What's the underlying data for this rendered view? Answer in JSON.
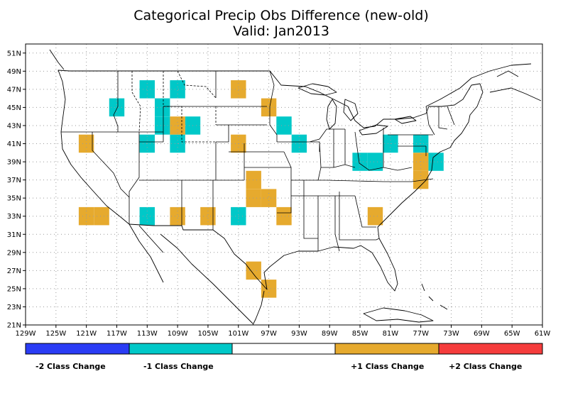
{
  "title": {
    "line1": "Categorical Precip Obs Difference (new-old)",
    "line2": "Valid: Jan2013"
  },
  "map": {
    "lon_range": [
      -129,
      -61
    ],
    "lat_range": [
      21,
      52
    ],
    "x_ticks": [
      {
        "lon": -129,
        "label": "129W"
      },
      {
        "lon": -125,
        "label": "125W"
      },
      {
        "lon": -121,
        "label": "121W"
      },
      {
        "lon": -117,
        "label": "117W"
      },
      {
        "lon": -113,
        "label": "113W"
      },
      {
        "lon": -109,
        "label": "109W"
      },
      {
        "lon": -105,
        "label": "105W"
      },
      {
        "lon": -101,
        "label": "101W"
      },
      {
        "lon": -97,
        "label": "97W"
      },
      {
        "lon": -93,
        "label": "93W"
      },
      {
        "lon": -89,
        "label": "89W"
      },
      {
        "lon": -85,
        "label": "85W"
      },
      {
        "lon": -81,
        "label": "81W"
      },
      {
        "lon": -77,
        "label": "77W"
      },
      {
        "lon": -73,
        "label": "73W"
      },
      {
        "lon": -69,
        "label": "69W"
      },
      {
        "lon": -65,
        "label": "65W"
      },
      {
        "lon": -61,
        "label": "61W"
      }
    ],
    "y_ticks": [
      {
        "lat": 21,
        "label": "21N"
      },
      {
        "lat": 23,
        "label": "23N"
      },
      {
        "lat": 25,
        "label": "25N"
      },
      {
        "lat": 27,
        "label": "27N"
      },
      {
        "lat": 29,
        "label": "29N"
      },
      {
        "lat": 31,
        "label": "31N"
      },
      {
        "lat": 33,
        "label": "33N"
      },
      {
        "lat": 35,
        "label": "35N"
      },
      {
        "lat": 37,
        "label": "37N"
      },
      {
        "lat": 39,
        "label": "39N"
      },
      {
        "lat": 41,
        "label": "41N"
      },
      {
        "lat": 43,
        "label": "43N"
      },
      {
        "lat": 45,
        "label": "45N"
      },
      {
        "lat": 47,
        "label": "47N"
      },
      {
        "lat": 49,
        "label": "49N"
      },
      {
        "lat": 51,
        "label": "51N"
      }
    ],
    "grid": true,
    "colors": {
      "minus2": "#2a3cf5",
      "minus1": "#00c8c8",
      "zero": "#ffffff",
      "plus1": "#e6aa2e",
      "plus2": "#f53c3c"
    },
    "cells": [
      {
        "lon": -113,
        "lat": 47,
        "cls": -1
      },
      {
        "lon": -111,
        "lat": 45,
        "cls": -1
      },
      {
        "lon": -109,
        "lat": 47,
        "cls": -1
      },
      {
        "lon": -117,
        "lat": 45,
        "cls": -1
      },
      {
        "lon": -111,
        "lat": 43,
        "cls": -1
      },
      {
        "lon": -107,
        "lat": 43,
        "cls": -1
      },
      {
        "lon": -113,
        "lat": 41,
        "cls": -1
      },
      {
        "lon": -109,
        "lat": 41,
        "cls": -1
      },
      {
        "lon": -95,
        "lat": 43,
        "cls": -1
      },
      {
        "lon": -93,
        "lat": 41,
        "cls": -1
      },
      {
        "lon": -85,
        "lat": 39,
        "cls": -1
      },
      {
        "lon": -83,
        "lat": 39,
        "cls": -1
      },
      {
        "lon": -81,
        "lat": 41,
        "cls": -1
      },
      {
        "lon": -77,
        "lat": 41,
        "cls": -1
      },
      {
        "lon": -75,
        "lat": 39,
        "cls": -1
      },
      {
        "lon": -113,
        "lat": 33,
        "cls": -1
      },
      {
        "lon": -101,
        "lat": 33,
        "cls": -1
      },
      {
        "lon": -101,
        "lat": 47,
        "cls": 1
      },
      {
        "lon": -97,
        "lat": 45,
        "cls": 1
      },
      {
        "lon": -109,
        "lat": 43,
        "cls": 1
      },
      {
        "lon": -121,
        "lat": 41,
        "cls": 1
      },
      {
        "lon": -101,
        "lat": 41,
        "cls": 1
      },
      {
        "lon": -99,
        "lat": 37,
        "cls": 1
      },
      {
        "lon": -99,
        "lat": 35,
        "cls": 1
      },
      {
        "lon": -97,
        "lat": 35,
        "cls": 1
      },
      {
        "lon": -121,
        "lat": 33,
        "cls": 1
      },
      {
        "lon": -119,
        "lat": 33,
        "cls": 1
      },
      {
        "lon": -109,
        "lat": 33,
        "cls": 1
      },
      {
        "lon": -105,
        "lat": 33,
        "cls": 1
      },
      {
        "lon": -95,
        "lat": 33,
        "cls": 1
      },
      {
        "lon": -83,
        "lat": 33,
        "cls": 1
      },
      {
        "lon": -77,
        "lat": 39,
        "cls": 1
      },
      {
        "lon": -77,
        "lat": 37,
        "cls": 1
      },
      {
        "lon": -99,
        "lat": 27,
        "cls": 1
      },
      {
        "lon": -97,
        "lat": 25,
        "cls": 1
      }
    ]
  },
  "legend": {
    "minus2_label": "-2 Class Change",
    "minus1_label": "-1 Class Change",
    "plus1_label": "+1 Class Change",
    "plus2_label": "+2 Class Change"
  }
}
